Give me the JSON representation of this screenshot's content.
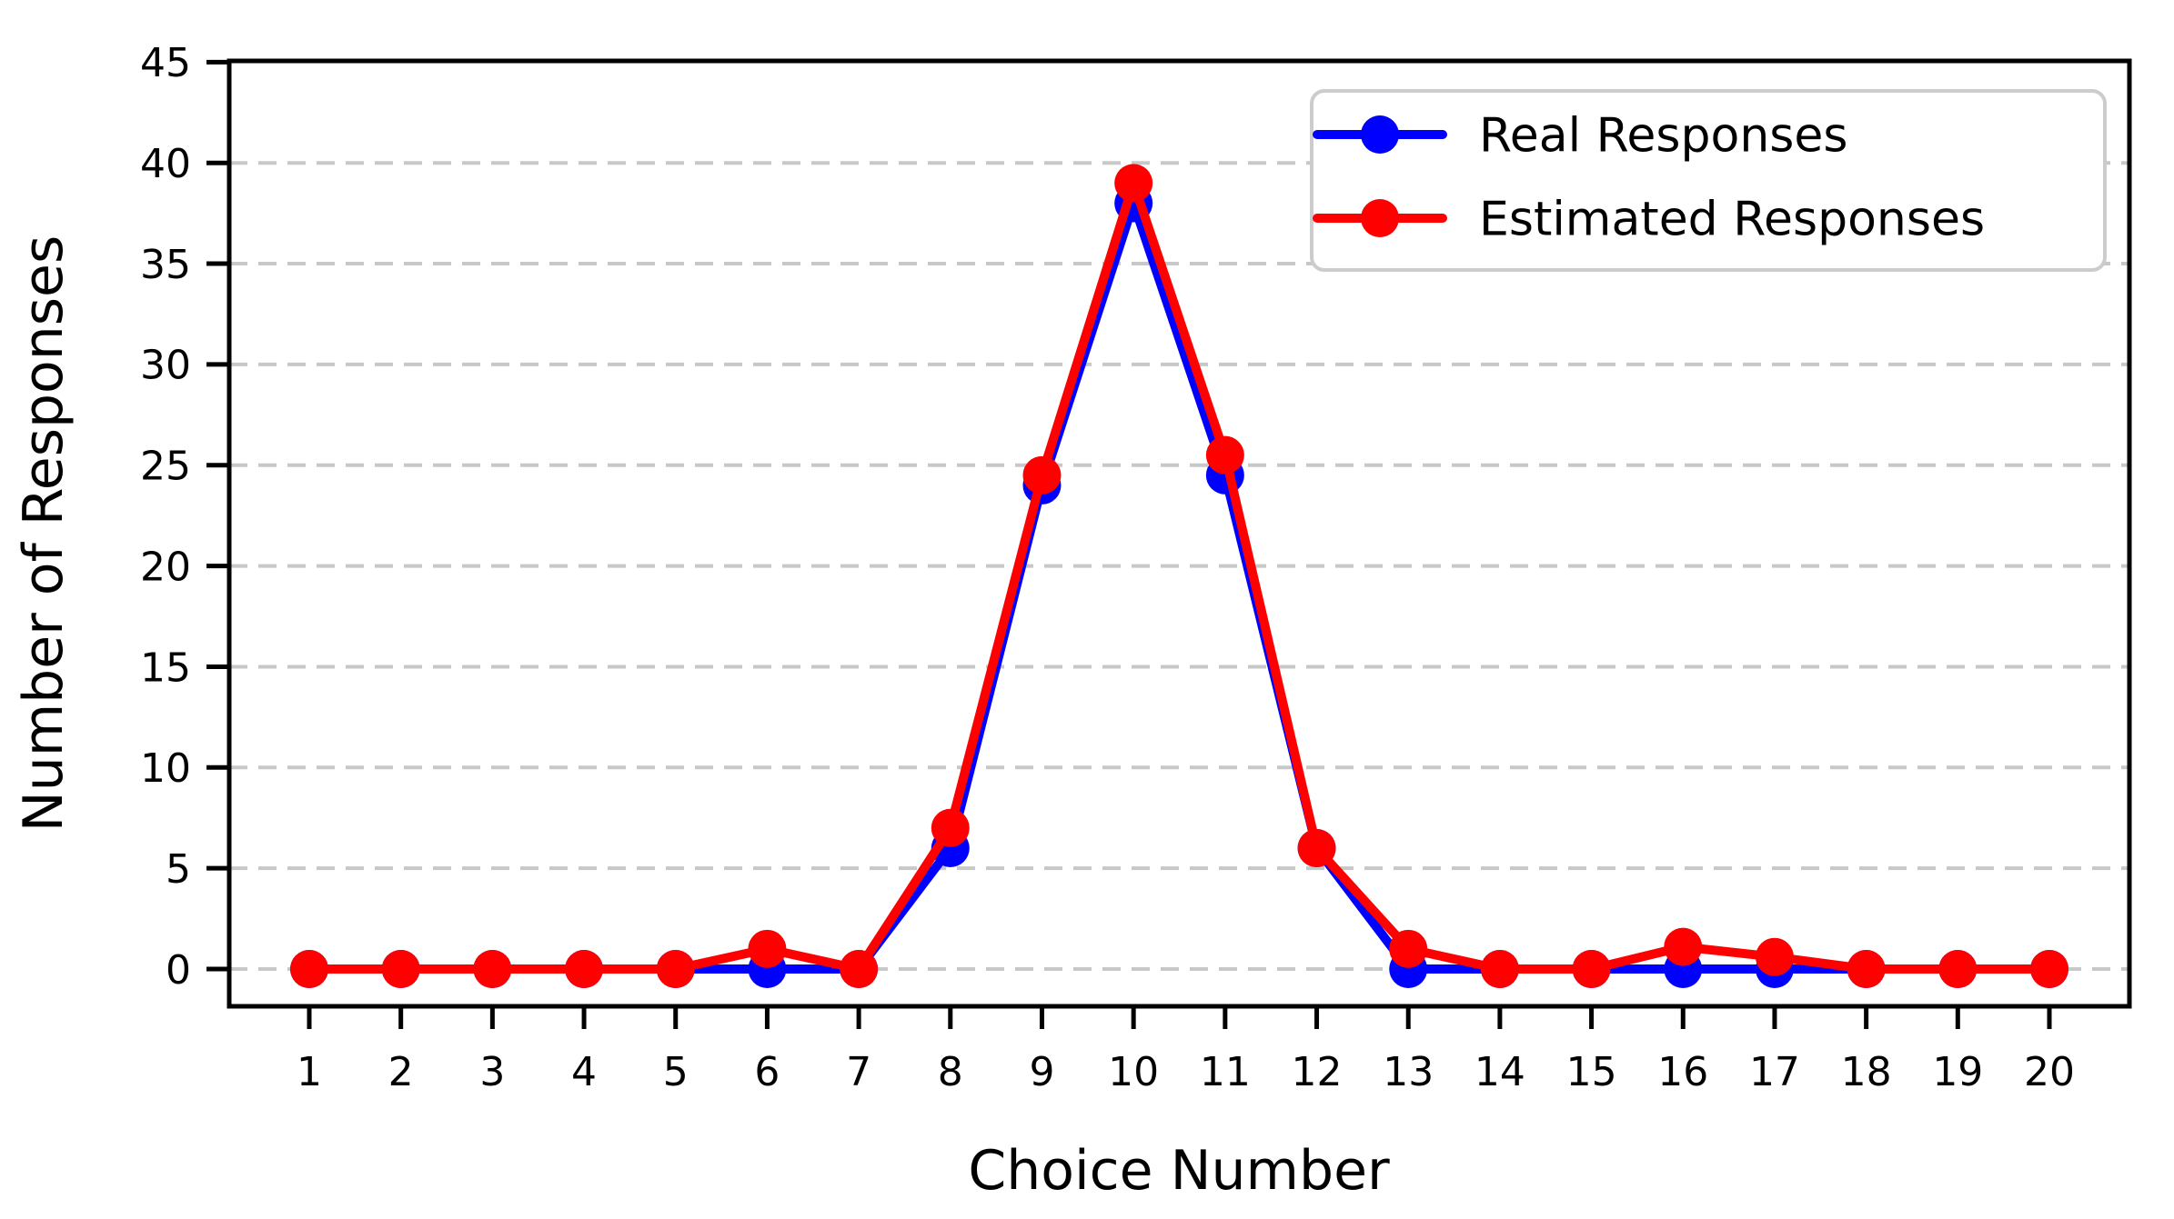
{
  "chart_data": {
    "type": "line",
    "title": "",
    "xlabel": "Choice Number",
    "ylabel": "Number of Responses",
    "x": [
      1,
      2,
      3,
      4,
      5,
      6,
      7,
      8,
      9,
      10,
      11,
      12,
      13,
      14,
      15,
      16,
      17,
      18,
      19,
      20
    ],
    "series": [
      {
        "name": "Real Responses",
        "color": "#0000ff",
        "values": [
          0,
          0,
          0,
          0,
          0,
          0,
          0,
          6,
          24,
          38,
          24.5,
          6,
          0,
          0,
          0,
          0,
          0,
          0,
          0,
          0
        ]
      },
      {
        "name": "Estimated Responses",
        "color": "#ff0000",
        "values": [
          0,
          0,
          0,
          0,
          0,
          1,
          0,
          7,
          24.5,
          39,
          25.5,
          6,
          1,
          0,
          0,
          1.1,
          0.6,
          0,
          0,
          0
        ]
      }
    ],
    "ylim": [
      -2,
      45.4
    ],
    "yticks": [
      0,
      5,
      10,
      15,
      20,
      25,
      30,
      35,
      40,
      45
    ],
    "xticks": [
      1,
      2,
      3,
      4,
      5,
      6,
      7,
      8,
      9,
      10,
      11,
      12,
      13,
      14,
      15,
      16,
      17,
      18,
      19,
      20
    ],
    "grid": true,
    "grid_color": "#c8c8c8",
    "axis_color": "#000000",
    "background_color": "#ffffff",
    "legend_position": "upper right",
    "legend_border_color": "#cccccc",
    "marker": "circle",
    "marker_radius": 21,
    "line_width": 10
  }
}
